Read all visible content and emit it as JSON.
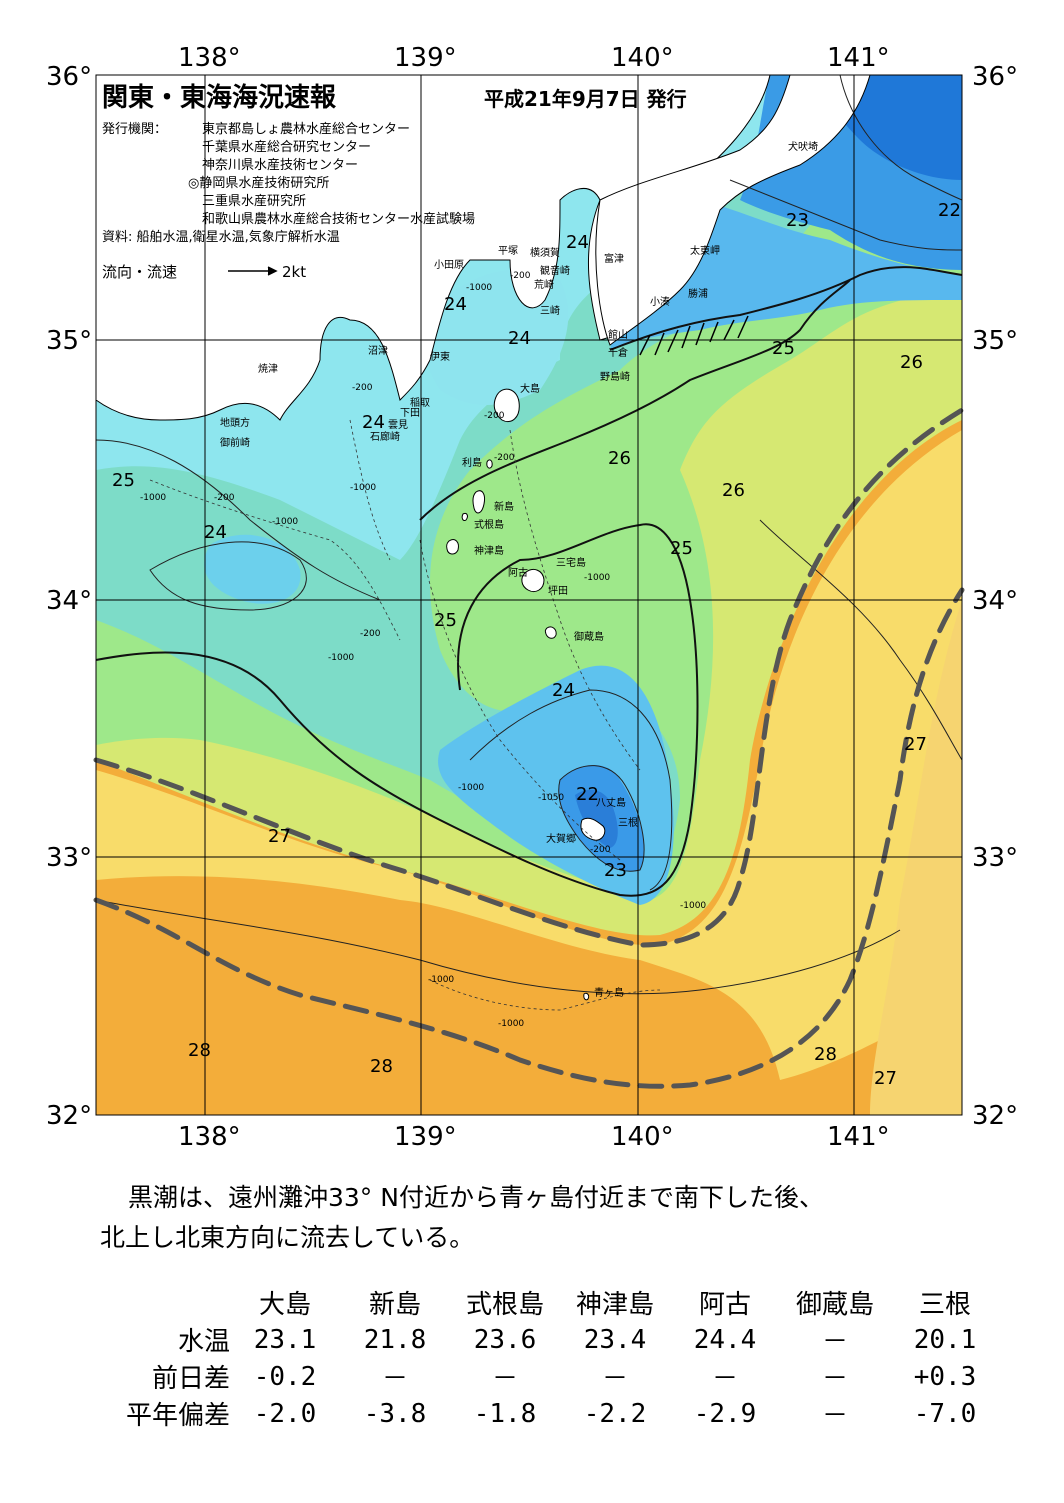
{
  "map": {
    "title": "関東・東海海況速報",
    "issue_date": "平成21年9月7日 発行",
    "publisher_label": "発行機関：",
    "publishers": [
      "東京都島しょ農林水産総合センター",
      "千葉県水産総合研究センター",
      "神奈川県水産技術センター",
      "◎静岡県水産技術研究所",
      "三重県水産研究所",
      "和歌山県農林水産総合技術センター水産試験場"
    ],
    "source": "資料: 船舶水温,衛星水温,気象庁解析水温",
    "current_legend_label": "流向・流速",
    "current_legend_speed": "2kt",
    "lon_labels": [
      "138°",
      "139°",
      "140°",
      "141°"
    ],
    "lat_labels": [
      "36°",
      "35°",
      "34°",
      "33°",
      "32°"
    ],
    "extent": {
      "lon_min": 137.5,
      "lon_max": 141.5,
      "lat_min": 32,
      "lat_max": 36
    },
    "temperature_labels": [
      "22",
      "23",
      "24",
      "24",
      "24",
      "24",
      "24",
      "24",
      "25",
      "25",
      "25",
      "25",
      "26",
      "26",
      "26",
      "27",
      "27",
      "27",
      "28",
      "28",
      "28",
      "22",
      "23"
    ],
    "depth_labels": [
      "-200",
      "-1000",
      "-200",
      "-1000",
      "-200",
      "-1000",
      "-200",
      "-1000",
      "-200",
      "-1000",
      "-200",
      "-1000",
      "-1000",
      "-1050",
      "-200",
      "-1000",
      "-1000",
      "-1000"
    ],
    "place_names": [
      "犬吠埼",
      "太東岬",
      "勝浦",
      "小湊",
      "富津",
      "横須賀",
      "観音崎",
      "平塚",
      "小田原",
      "荒崎",
      "三崎",
      "館山",
      "千倉",
      "野島崎",
      "沼津",
      "伊東",
      "焼津",
      "稲取",
      "下田",
      "雲見",
      "石廊崎",
      "地頭方",
      "御前崎",
      "大島",
      "利島",
      "新島",
      "式根島",
      "神津島",
      "三宅島",
      "阿古",
      "坪田",
      "御蔵島",
      "八丈島",
      "三根",
      "大賀郷",
      "青ヶ島"
    ],
    "colors": {
      "t_lt22": "#2f8ae6",
      "t_22": "#4aa4ee",
      "t_23": "#5cc0f2",
      "t_24": "#7fdcf2",
      "t_25": "#8ce8a6",
      "t_26": "#b8ec78",
      "t_27": "#f6e070",
      "t_28": "#f0a830",
      "t_gt28": "#ee9428",
      "land": "#ffffff",
      "kuroshio_axis": "#555555",
      "arrows": "#000000"
    }
  },
  "summary_text_line1": "黒潮は、遠州灘沖33° N付近から青ヶ島付近まで南下した後、",
  "summary_text_line2": "北上し北東方向に流去している。",
  "table": {
    "stations": [
      "大島",
      "新島",
      "式根島",
      "神津島",
      "阿古",
      "御蔵島",
      "三根"
    ],
    "rows": [
      {
        "label": "水温",
        "values": [
          "23.1",
          "21.8",
          "23.6",
          "23.4",
          "24.4",
          "－",
          "20.1"
        ]
      },
      {
        "label": "前日差",
        "values": [
          "-0.2",
          "－",
          "－",
          "－",
          "－",
          "－",
          "+0.3"
        ]
      },
      {
        "label": "平年偏差",
        "values": [
          "-2.0",
          "-3.8",
          "-1.8",
          "-2.2",
          "-2.9",
          "－",
          "-7.0"
        ]
      }
    ]
  }
}
